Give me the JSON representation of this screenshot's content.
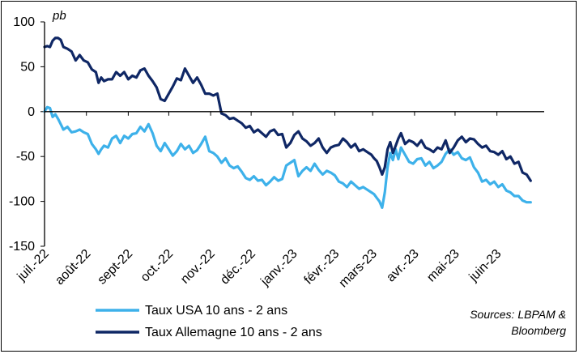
{
  "chart_data": {
    "type": "line",
    "unit_label": "pb",
    "ylim": [
      -150,
      100
    ],
    "yticks": [
      100,
      50,
      0,
      -50,
      -100,
      -150
    ],
    "ytick_labels": [
      "100",
      "50",
      "0",
      "-50",
      "-100",
      "-150"
    ],
    "xlim": [
      "2022-07-01",
      "2023-07-06"
    ],
    "xticks": [
      {
        "date": "2022-07-01",
        "label": "juil.-22"
      },
      {
        "date": "2022-08-01",
        "label": "août-22"
      },
      {
        "date": "2022-09-01",
        "label": "sept-22"
      },
      {
        "date": "2022-10-01",
        "label": "oct.-22"
      },
      {
        "date": "2022-11-01",
        "label": "nov.-22"
      },
      {
        "date": "2022-12-01",
        "label": "déc.-22"
      },
      {
        "date": "2023-01-01",
        "label": "janv.-23"
      },
      {
        "date": "2023-02-01",
        "label": "févr.-23"
      },
      {
        "date": "2023-03-01",
        "label": "mars-23"
      },
      {
        "date": "2023-04-01",
        "label": "avr.-23"
      },
      {
        "date": "2023-05-01",
        "label": "mai-23"
      },
      {
        "date": "2023-06-01",
        "label": "juin-23"
      }
    ],
    "grid": false,
    "legend_position": "bottom-left",
    "series": [
      {
        "name": "Taux USA 10 ans - 2 ans",
        "color": "#3db1ea",
        "points": [
          [
            "2022-07-01",
            0
          ],
          [
            "2022-07-03",
            5
          ],
          [
            "2022-07-05",
            4
          ],
          [
            "2022-07-07",
            -6
          ],
          [
            "2022-07-09",
            -3
          ],
          [
            "2022-07-11",
            -8
          ],
          [
            "2022-07-13",
            -14
          ],
          [
            "2022-07-15",
            -20
          ],
          [
            "2022-07-18",
            -17
          ],
          [
            "2022-07-21",
            -23
          ],
          [
            "2022-07-24",
            -22
          ],
          [
            "2022-07-27",
            -20
          ],
          [
            "2022-07-30",
            -23
          ],
          [
            "2022-08-02",
            -25
          ],
          [
            "2022-08-05",
            -36
          ],
          [
            "2022-08-08",
            -42
          ],
          [
            "2022-08-10",
            -47
          ],
          [
            "2022-08-12",
            -42
          ],
          [
            "2022-08-14",
            -38
          ],
          [
            "2022-08-17",
            -40
          ],
          [
            "2022-08-20",
            -30
          ],
          [
            "2022-08-23",
            -27
          ],
          [
            "2022-08-26",
            -35
          ],
          [
            "2022-08-29",
            -27
          ],
          [
            "2022-09-01",
            -30
          ],
          [
            "2022-09-04",
            -25
          ],
          [
            "2022-09-07",
            -24
          ],
          [
            "2022-09-10",
            -17
          ],
          [
            "2022-09-13",
            -22
          ],
          [
            "2022-09-16",
            -14
          ],
          [
            "2022-09-19",
            -24
          ],
          [
            "2022-09-22",
            -38
          ],
          [
            "2022-09-25",
            -44
          ],
          [
            "2022-09-28",
            -35
          ],
          [
            "2022-10-01",
            -42
          ],
          [
            "2022-10-04",
            -49
          ],
          [
            "2022-10-07",
            -44
          ],
          [
            "2022-10-10",
            -36
          ],
          [
            "2022-10-13",
            -42
          ],
          [
            "2022-10-16",
            -38
          ],
          [
            "2022-10-19",
            -46
          ],
          [
            "2022-10-22",
            -43
          ],
          [
            "2022-10-25",
            -36
          ],
          [
            "2022-10-28",
            -28
          ],
          [
            "2022-10-31",
            -44
          ],
          [
            "2022-11-03",
            -46
          ],
          [
            "2022-11-06",
            -50
          ],
          [
            "2022-11-09",
            -57
          ],
          [
            "2022-11-12",
            -52
          ],
          [
            "2022-11-15",
            -60
          ],
          [
            "2022-11-18",
            -63
          ],
          [
            "2022-11-21",
            -61
          ],
          [
            "2022-11-24",
            -67
          ],
          [
            "2022-11-27",
            -74
          ],
          [
            "2022-11-30",
            -76
          ],
          [
            "2022-12-03",
            -72
          ],
          [
            "2022-12-06",
            -77
          ],
          [
            "2022-12-09",
            -76
          ],
          [
            "2022-12-12",
            -82
          ],
          [
            "2022-12-15",
            -78
          ],
          [
            "2022-12-18",
            -73
          ],
          [
            "2022-12-21",
            -77
          ],
          [
            "2022-12-24",
            -75
          ],
          [
            "2022-12-27",
            -60
          ],
          [
            "2022-12-30",
            -57
          ],
          [
            "2023-01-02",
            -54
          ],
          [
            "2023-01-05",
            -72
          ],
          [
            "2023-01-08",
            -66
          ],
          [
            "2023-01-11",
            -62
          ],
          [
            "2023-01-14",
            -66
          ],
          [
            "2023-01-17",
            -58
          ],
          [
            "2023-01-20",
            -65
          ],
          [
            "2023-01-23",
            -70
          ],
          [
            "2023-01-26",
            -66
          ],
          [
            "2023-01-29",
            -68
          ],
          [
            "2023-02-01",
            -71
          ],
          [
            "2023-02-04",
            -78
          ],
          [
            "2023-02-07",
            -80
          ],
          [
            "2023-02-10",
            -84
          ],
          [
            "2023-02-13",
            -78
          ],
          [
            "2023-02-16",
            -82
          ],
          [
            "2023-02-19",
            -86
          ],
          [
            "2023-02-22",
            -84
          ],
          [
            "2023-02-25",
            -87
          ],
          [
            "2023-02-28",
            -90
          ],
          [
            "2023-03-02",
            -92
          ],
          [
            "2023-03-04",
            -96
          ],
          [
            "2023-03-06",
            -100
          ],
          [
            "2023-03-08",
            -107
          ],
          [
            "2023-03-10",
            -90
          ],
          [
            "2023-03-12",
            -62
          ],
          [
            "2023-03-14",
            -46
          ],
          [
            "2023-03-16",
            -54
          ],
          [
            "2023-03-18",
            -42
          ],
          [
            "2023-03-20",
            -53
          ],
          [
            "2023-03-22",
            -40
          ],
          [
            "2023-03-25",
            -48
          ],
          [
            "2023-03-28",
            -56
          ],
          [
            "2023-03-31",
            -58
          ],
          [
            "2023-04-03",
            -53
          ],
          [
            "2023-04-06",
            -52
          ],
          [
            "2023-04-09",
            -60
          ],
          [
            "2023-04-12",
            -56
          ],
          [
            "2023-04-15",
            -63
          ],
          [
            "2023-04-18",
            -60
          ],
          [
            "2023-04-21",
            -56
          ],
          [
            "2023-04-24",
            -47
          ],
          [
            "2023-04-27",
            -42
          ],
          [
            "2023-04-30",
            -48
          ],
          [
            "2023-05-03",
            -45
          ],
          [
            "2023-05-06",
            -52
          ],
          [
            "2023-05-09",
            -54
          ],
          [
            "2023-05-12",
            -51
          ],
          [
            "2023-05-15",
            -62
          ],
          [
            "2023-05-18",
            -68
          ],
          [
            "2023-05-21",
            -78
          ],
          [
            "2023-05-24",
            -76
          ],
          [
            "2023-05-27",
            -81
          ],
          [
            "2023-05-30",
            -78
          ],
          [
            "2023-06-02",
            -84
          ],
          [
            "2023-06-05",
            -81
          ],
          [
            "2023-06-08",
            -88
          ],
          [
            "2023-06-11",
            -90
          ],
          [
            "2023-06-14",
            -94
          ],
          [
            "2023-06-17",
            -94
          ],
          [
            "2023-06-20",
            -99
          ],
          [
            "2023-06-23",
            -101
          ],
          [
            "2023-06-26",
            -101
          ]
        ]
      },
      {
        "name": "Taux Allemagne 10 ans - 2 ans",
        "color": "#0f2765",
        "points": [
          [
            "2022-07-01",
            72
          ],
          [
            "2022-07-03",
            73
          ],
          [
            "2022-07-05",
            72
          ],
          [
            "2022-07-07",
            79
          ],
          [
            "2022-07-09",
            82
          ],
          [
            "2022-07-11",
            82
          ],
          [
            "2022-07-13",
            80
          ],
          [
            "2022-07-15",
            72
          ],
          [
            "2022-07-18",
            70
          ],
          [
            "2022-07-21",
            67
          ],
          [
            "2022-07-24",
            57
          ],
          [
            "2022-07-27",
            63
          ],
          [
            "2022-07-30",
            57
          ],
          [
            "2022-08-02",
            55
          ],
          [
            "2022-08-05",
            47
          ],
          [
            "2022-08-08",
            44
          ],
          [
            "2022-08-10",
            32
          ],
          [
            "2022-08-12",
            38
          ],
          [
            "2022-08-14",
            34
          ],
          [
            "2022-08-17",
            36
          ],
          [
            "2022-08-20",
            36
          ],
          [
            "2022-08-23",
            44
          ],
          [
            "2022-08-26",
            40
          ],
          [
            "2022-08-29",
            44
          ],
          [
            "2022-09-01",
            36
          ],
          [
            "2022-09-04",
            40
          ],
          [
            "2022-09-07",
            38
          ],
          [
            "2022-09-10",
            46
          ],
          [
            "2022-09-13",
            48
          ],
          [
            "2022-09-16",
            40
          ],
          [
            "2022-09-19",
            34
          ],
          [
            "2022-09-22",
            27
          ],
          [
            "2022-09-25",
            14
          ],
          [
            "2022-09-28",
            12
          ],
          [
            "2022-10-01",
            20
          ],
          [
            "2022-10-04",
            28
          ],
          [
            "2022-10-07",
            37
          ],
          [
            "2022-10-10",
            35
          ],
          [
            "2022-10-13",
            48
          ],
          [
            "2022-10-16",
            40
          ],
          [
            "2022-10-19",
            32
          ],
          [
            "2022-10-22",
            38
          ],
          [
            "2022-10-25",
            30
          ],
          [
            "2022-10-28",
            20
          ],
          [
            "2022-10-31",
            20
          ],
          [
            "2022-11-03",
            18
          ],
          [
            "2022-11-06",
            20
          ],
          [
            "2022-11-09",
            -2
          ],
          [
            "2022-11-12",
            -4
          ],
          [
            "2022-11-15",
            -8
          ],
          [
            "2022-11-18",
            -7
          ],
          [
            "2022-11-21",
            -10
          ],
          [
            "2022-11-24",
            -13
          ],
          [
            "2022-11-27",
            -18
          ],
          [
            "2022-11-30",
            -16
          ],
          [
            "2022-12-03",
            -23
          ],
          [
            "2022-12-06",
            -20
          ],
          [
            "2022-12-09",
            -24
          ],
          [
            "2022-12-12",
            -28
          ],
          [
            "2022-12-15",
            -22
          ],
          [
            "2022-12-18",
            -20
          ],
          [
            "2022-12-21",
            -26
          ],
          [
            "2022-12-24",
            -25
          ],
          [
            "2022-12-27",
            -40
          ],
          [
            "2022-12-30",
            -35
          ],
          [
            "2023-01-02",
            -26
          ],
          [
            "2023-01-05",
            -22
          ],
          [
            "2023-01-08",
            -30
          ],
          [
            "2023-01-11",
            -33
          ],
          [
            "2023-01-14",
            -38
          ],
          [
            "2023-01-17",
            -35
          ],
          [
            "2023-01-20",
            -30
          ],
          [
            "2023-01-23",
            -40
          ],
          [
            "2023-01-26",
            -46
          ],
          [
            "2023-01-29",
            -40
          ],
          [
            "2023-02-01",
            -38
          ],
          [
            "2023-02-04",
            -37
          ],
          [
            "2023-02-07",
            -30
          ],
          [
            "2023-02-10",
            -34
          ],
          [
            "2023-02-13",
            -40
          ],
          [
            "2023-02-16",
            -36
          ],
          [
            "2023-02-19",
            -44
          ],
          [
            "2023-02-22",
            -42
          ],
          [
            "2023-02-25",
            -45
          ],
          [
            "2023-02-28",
            -48
          ],
          [
            "2023-03-02",
            -52
          ],
          [
            "2023-03-04",
            -55
          ],
          [
            "2023-03-06",
            -62
          ],
          [
            "2023-03-08",
            -70
          ],
          [
            "2023-03-10",
            -62
          ],
          [
            "2023-03-12",
            -42
          ],
          [
            "2023-03-14",
            -34
          ],
          [
            "2023-03-16",
            -46
          ],
          [
            "2023-03-18",
            -38
          ],
          [
            "2023-03-20",
            -30
          ],
          [
            "2023-03-22",
            -24
          ],
          [
            "2023-03-25",
            -36
          ],
          [
            "2023-03-28",
            -32
          ],
          [
            "2023-03-31",
            -34
          ],
          [
            "2023-04-03",
            -38
          ],
          [
            "2023-04-06",
            -32
          ],
          [
            "2023-04-09",
            -40
          ],
          [
            "2023-04-12",
            -42
          ],
          [
            "2023-04-15",
            -45
          ],
          [
            "2023-04-18",
            -40
          ],
          [
            "2023-04-21",
            -42
          ],
          [
            "2023-04-24",
            -32
          ],
          [
            "2023-04-27",
            -46
          ],
          [
            "2023-04-30",
            -40
          ],
          [
            "2023-05-03",
            -32
          ],
          [
            "2023-05-06",
            -28
          ],
          [
            "2023-05-09",
            -34
          ],
          [
            "2023-05-12",
            -30
          ],
          [
            "2023-05-15",
            -31
          ],
          [
            "2023-05-18",
            -36
          ],
          [
            "2023-05-21",
            -40
          ],
          [
            "2023-05-24",
            -38
          ],
          [
            "2023-05-27",
            -44
          ],
          [
            "2023-05-30",
            -45
          ],
          [
            "2023-06-02",
            -48
          ],
          [
            "2023-06-05",
            -44
          ],
          [
            "2023-06-08",
            -53
          ],
          [
            "2023-06-11",
            -50
          ],
          [
            "2023-06-14",
            -58
          ],
          [
            "2023-06-17",
            -56
          ],
          [
            "2023-06-20",
            -68
          ],
          [
            "2023-06-23",
            -70
          ],
          [
            "2023-06-26",
            -77
          ]
        ]
      }
    ],
    "source_lines": [
      "Sources: LBPAM &",
      "Bloomberg"
    ]
  }
}
